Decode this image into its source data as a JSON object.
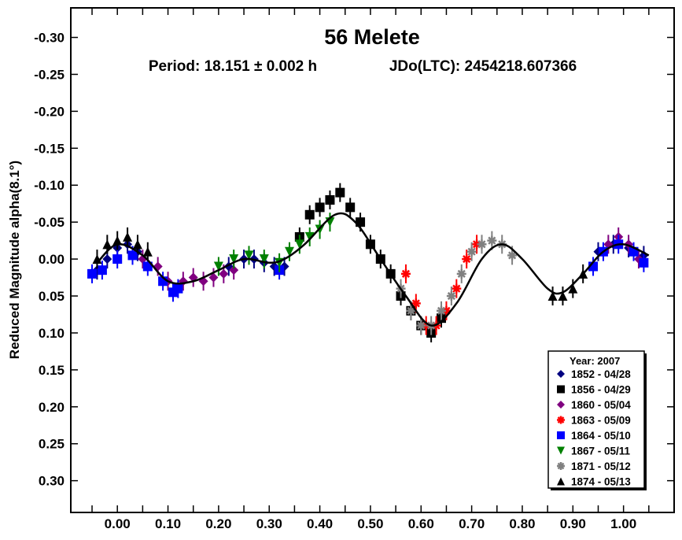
{
  "chart_data": {
    "type": "scatter",
    "title": "56 Melete",
    "subtitle_period": "Period: 18.151 ± 0.002 h",
    "subtitle_epoch": "JDo(LTC): 2454218.607366",
    "xlabel": "",
    "ylabel": "Reduced Magnitude alpha(8.1°)",
    "xlim": [
      -0.092,
      1.1
    ],
    "ylim": [
      -0.34,
      0.343
    ],
    "y_inverted": true,
    "xticks": [
      0.0,
      0.1,
      0.2,
      0.3,
      0.4,
      0.5,
      0.6,
      0.7,
      0.8,
      0.9,
      1.0
    ],
    "xtick_labels": [
      "0.00",
      "0.10",
      "0.20",
      "0.30",
      "0.40",
      "0.50",
      "0.60",
      "0.70",
      "0.80",
      "0.90",
      "1.00"
    ],
    "yticks": [
      -0.3,
      -0.25,
      -0.2,
      -0.15,
      -0.1,
      -0.05,
      0.0,
      0.05,
      0.1,
      0.15,
      0.2,
      0.25,
      0.3
    ],
    "ytick_labels": [
      "-0.30",
      "-0.25",
      "-0.20",
      "-0.15",
      "-0.10",
      "-0.05",
      "0.00",
      "0.05",
      "0.10",
      "0.15",
      "0.20",
      "0.25",
      "0.30"
    ],
    "grid": false,
    "legend": {
      "title": "Year: 2007",
      "placement": "bottom-right"
    },
    "fit_curve": {
      "x": [
        -0.04,
        0.0,
        0.05,
        0.1,
        0.15,
        0.2,
        0.25,
        0.3,
        0.33,
        0.37,
        0.43,
        0.47,
        0.52,
        0.57,
        0.62,
        0.67,
        0.72,
        0.76,
        0.8,
        0.85,
        0.88,
        0.92,
        0.96,
        1.0,
        1.05
      ],
      "y": [
        0.005,
        -0.02,
        -0.005,
        0.03,
        0.03,
        0.015,
        0.0,
        0.005,
        0.0,
        -0.02,
        -0.06,
        -0.05,
        0.0,
        0.05,
        0.09,
        0.06,
        0.0,
        -0.02,
        0.0,
        0.04,
        0.045,
        0.02,
        -0.01,
        -0.02,
        -0.005
      ]
    },
    "series": [
      {
        "name": "1852 - 04/28",
        "marker": "diamond",
        "color": "#000080",
        "x": [
          -0.04,
          -0.02,
          0.0,
          0.02,
          0.04,
          0.22,
          0.25,
          0.27,
          0.29,
          0.31,
          0.33,
          0.95,
          0.98,
          1.01,
          1.04
        ],
        "y": [
          0.015,
          0.0,
          -0.015,
          -0.02,
          -0.01,
          0.01,
          0.0,
          0.0,
          0.005,
          0.01,
          0.01,
          -0.01,
          -0.02,
          -0.015,
          -0.005
        ]
      },
      {
        "name": "1856 - 04/29",
        "marker": "square",
        "color": "#000000",
        "x": [
          0.36,
          0.38,
          0.4,
          0.42,
          0.44,
          0.46,
          0.48,
          0.5,
          0.52,
          0.54,
          0.56,
          0.58,
          0.6,
          0.62,
          0.64
        ],
        "y": [
          -0.03,
          -0.06,
          -0.07,
          -0.08,
          -0.09,
          -0.07,
          -0.05,
          -0.02,
          0.0,
          0.02,
          0.05,
          0.07,
          0.09,
          0.1,
          0.08
        ]
      },
      {
        "name": "1860 - 05/04",
        "marker": "diamond",
        "color": "#800080",
        "x": [
          0.05,
          0.08,
          0.1,
          0.13,
          0.15,
          0.17,
          0.19,
          0.21,
          0.23,
          0.97,
          0.99,
          1.01,
          1.03
        ],
        "y": [
          0.0,
          0.01,
          0.03,
          0.03,
          0.025,
          0.03,
          0.025,
          0.02,
          0.015,
          -0.02,
          -0.03,
          -0.02,
          0.0
        ]
      },
      {
        "name": "1863 - 05/09",
        "marker": "asterisk",
        "color": "#ff0000",
        "x": [
          0.57,
          0.59,
          0.61,
          0.63,
          0.65,
          0.67,
          0.69,
          0.71
        ],
        "y": [
          0.02,
          0.06,
          0.09,
          0.09,
          0.07,
          0.04,
          0.0,
          -0.02
        ]
      },
      {
        "name": "1864 - 05/10",
        "marker": "square",
        "color": "#0000ff",
        "x": [
          -0.05,
          -0.03,
          0.0,
          0.03,
          0.06,
          0.09,
          0.11,
          0.12,
          0.32,
          0.94,
          0.96,
          0.99,
          1.02,
          1.04
        ],
        "y": [
          0.02,
          0.015,
          0.0,
          -0.005,
          0.01,
          0.03,
          0.045,
          0.04,
          0.015,
          0.01,
          -0.01,
          -0.02,
          -0.01,
          0.005
        ]
      },
      {
        "name": "1867 - 05/11",
        "marker": "triangle-down",
        "color": "#008000",
        "x": [
          0.2,
          0.23,
          0.26,
          0.29,
          0.32,
          0.34,
          0.36,
          0.38,
          0.4,
          0.42
        ],
        "y": [
          0.01,
          0.0,
          -0.005,
          0.0,
          0.005,
          -0.01,
          -0.02,
          -0.03,
          -0.04,
          -0.05
        ]
      },
      {
        "name": "1871 - 05/12",
        "marker": "asterisk",
        "color": "#808080",
        "x": [
          0.56,
          0.58,
          0.6,
          0.62,
          0.64,
          0.66,
          0.68,
          0.7,
          0.72,
          0.74,
          0.76,
          0.78
        ],
        "y": [
          0.04,
          0.07,
          0.09,
          0.09,
          0.07,
          0.05,
          0.02,
          -0.01,
          -0.02,
          -0.025,
          -0.02,
          -0.005
        ]
      },
      {
        "name": "1874 - 05/13",
        "marker": "triangle-up",
        "color": "#000000",
        "x": [
          -0.04,
          -0.02,
          0.0,
          0.02,
          0.04,
          0.06,
          0.86,
          0.88,
          0.9,
          0.92
        ],
        "y": [
          0.0,
          -0.02,
          -0.025,
          -0.03,
          -0.02,
          -0.01,
          0.05,
          0.05,
          0.04,
          0.02
        ]
      }
    ]
  }
}
